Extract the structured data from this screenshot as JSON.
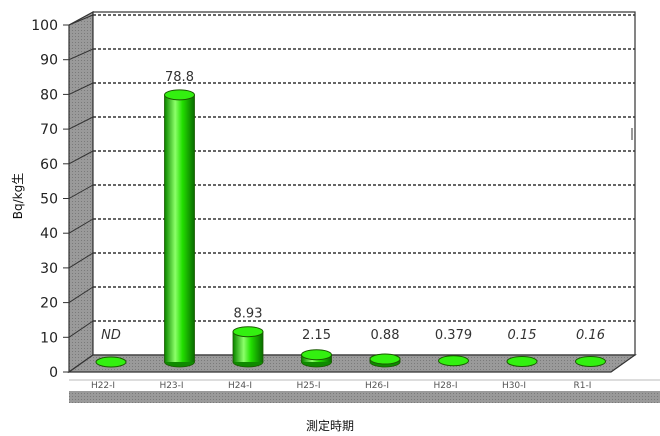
{
  "chart_data": {
    "type": "bar",
    "categories": [
      "H22-Ⅰ",
      "H23-Ⅰ",
      "H24-Ⅰ",
      "H25-Ⅰ",
      "H26-Ⅰ",
      "H28-Ⅰ",
      "H30-Ⅰ",
      "R1-Ⅰ"
    ],
    "values": [
      0,
      78.8,
      8.93,
      2.15,
      0.88,
      0.379,
      0.15,
      0.16
    ],
    "data_labels": [
      "ND",
      "78.8",
      "8.93",
      "2.15",
      "0.88",
      "0.379",
      "0.15",
      "0.16"
    ],
    "italic_labels": [
      true,
      false,
      false,
      false,
      false,
      false,
      true,
      true
    ],
    "title": "",
    "xlabel": "測定時期",
    "ylabel": "Bq/kg生",
    "ylim": [
      0,
      100
    ],
    "yticks": [
      0,
      10,
      20,
      30,
      40,
      50,
      60,
      70,
      80,
      90,
      100
    ],
    "grid": true,
    "bar_style": "3d-cylinder",
    "colors": {
      "bar": "#22e000",
      "bar_dark": "#0f8a00",
      "bar_light": "#8cff6a",
      "bar_top": "#33f010",
      "floor": "#a8a8a8",
      "wall": "#a0a0a0",
      "grid": "#333333"
    }
  }
}
